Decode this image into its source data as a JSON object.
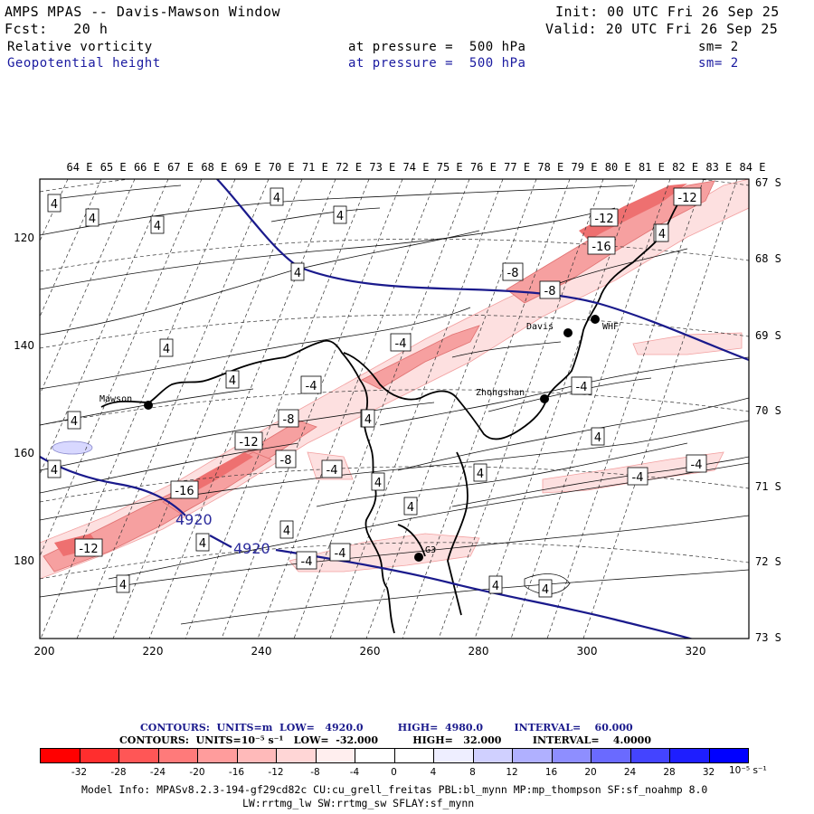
{
  "header": {
    "title": "AMPS MPAS -- Davis-Mawson Window",
    "init": "Init: 00 UTC Fri 26 Sep 25",
    "fcst": "Fcst:   20 h",
    "valid": "Valid: 20 UTC Fri 26 Sep 25",
    "field1": "Relative vorticity",
    "field1_level": "at pressure =  500 hPa",
    "field1_sm": "sm= 2",
    "field2": "Geopotential height",
    "field2_level": "at pressure =  500 hPa",
    "field2_sm": "sm= 2"
  },
  "map": {
    "top_labels": [
      "64 E",
      "65 E",
      "66 E",
      "67 E",
      "68 E",
      "69 E",
      "70 E",
      "71 E",
      "72 E",
      "73 E",
      "74 E",
      "75 E",
      "76 E",
      "77 E",
      "78 E",
      "79 E",
      "80 E",
      "81 E",
      "82 E",
      "83 E",
      "84 E"
    ],
    "right_labels": [
      "67 S",
      "68 S",
      "69 S",
      "70 S",
      "71 S",
      "72 S",
      "73 S"
    ],
    "left_labels": [
      "120",
      "140",
      "160",
      "180"
    ],
    "bottom_labels": [
      "200",
      "220",
      "240",
      "260",
      "280",
      "300",
      "320"
    ],
    "stations": [
      {
        "name": "Mawson"
      },
      {
        "name": "Davis"
      },
      {
        "name": "WHF"
      },
      {
        "name": "Zhongshan"
      },
      {
        "name": "G3"
      }
    ],
    "height_labels": [
      "4920",
      "4920"
    ],
    "vort_labels": [
      "4",
      "4",
      "4",
      "4",
      "4",
      "4",
      "4",
      "4",
      "4",
      "4",
      "4",
      "4",
      "4",
      "4",
      "4",
      "4",
      "4",
      "4",
      "4",
      "4",
      "4",
      "4",
      "4",
      "4",
      "-4",
      "-4",
      "-4",
      "-4",
      "-4",
      "-4",
      "-4",
      "-4",
      "-8",
      "-8",
      "-8",
      "-8",
      "-12",
      "-12",
      "-12",
      "-12",
      "-16",
      "-16"
    ],
    "colors": {
      "map_blue": "#1a1a8c",
      "red_strong": "#f08080",
      "red_light": "#fbd0d0"
    }
  },
  "footer": {
    "contours1": "CONTOURS:  UNITS=m  LOW=   4920.0          HIGH=  4980.0         INTERVAL=    60.000",
    "contours2": "CONTOURS:  UNITS=10⁻⁵ s⁻¹   LOW=  -32.000          HIGH=   32.000         INTERVAL=    4.0000",
    "model1": "Model Info: MPASv8.2.3-194-gf29cd82c CU:cu_grell_freitas PBL:bl_mynn MP:mp_thompson SF:sf_noahmp 8.0",
    "model2": "LW:rrtmg_lw SW:rrtmg_sw SFLAY:sf_mynn",
    "cbar_labels": [
      "-32",
      "-28",
      "-24",
      "-20",
      "-16",
      "-12",
      "-8",
      "-4",
      "0",
      "4",
      "8",
      "12",
      "16",
      "20",
      "24",
      "28",
      "32"
    ],
    "cbar_units": "10⁻⁵ s⁻¹",
    "cbar_colors": [
      "#ff0000",
      "#ff2e2e",
      "#ff5656",
      "#ff7a7a",
      "#ff9c9c",
      "#ffbaba",
      "#ffd6d6",
      "#ffeeee",
      "#ffffff",
      "#ffffff",
      "#eeeeff",
      "#d0d0ff",
      "#b0b0ff",
      "#8e8eff",
      "#6a6aff",
      "#4444ff",
      "#1e1eff",
      "#0000ff"
    ]
  }
}
